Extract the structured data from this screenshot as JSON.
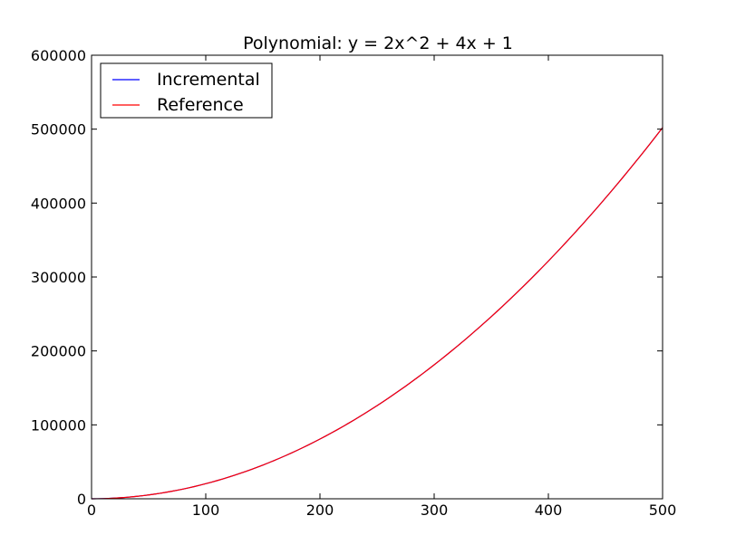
{
  "chart_data": {
    "type": "line",
    "title": "Polynomial: y = 2x^2 + 4x + 1",
    "xlabel": "",
    "ylabel": "",
    "xlim": [
      0,
      500
    ],
    "ylim": [
      0,
      600000
    ],
    "x_ticks": [
      0,
      100,
      200,
      300,
      400,
      500
    ],
    "y_ticks": [
      0,
      100000,
      200000,
      300000,
      400000,
      500000,
      600000
    ],
    "x_tick_labels": [
      "0",
      "100",
      "200",
      "300",
      "400",
      "500"
    ],
    "y_tick_labels": [
      "0",
      "100000",
      "200000",
      "300000",
      "400000",
      "500000",
      "600000"
    ],
    "grid": false,
    "legend_position": "upper-left",
    "x": [
      0,
      25,
      50,
      75,
      100,
      125,
      150,
      175,
      200,
      225,
      250,
      275,
      300,
      325,
      350,
      375,
      400,
      425,
      450,
      475,
      500
    ],
    "series": [
      {
        "name": "Incremental",
        "color": "#0000ff",
        "values": [
          1,
          1351,
          5201,
          11551,
          20401,
          31751,
          45601,
          61951,
          80801,
          102151,
          126001,
          152351,
          181201,
          212551,
          246401,
          282751,
          321601,
          362951,
          406801,
          453151,
          502001
        ]
      },
      {
        "name": "Reference",
        "color": "#ff0000",
        "values": [
          1,
          1351,
          5201,
          11551,
          20401,
          31751,
          45601,
          61951,
          80801,
          102151,
          126001,
          152351,
          181201,
          212551,
          246401,
          282751,
          321601,
          362951,
          406801,
          453151,
          502001
        ]
      }
    ]
  }
}
